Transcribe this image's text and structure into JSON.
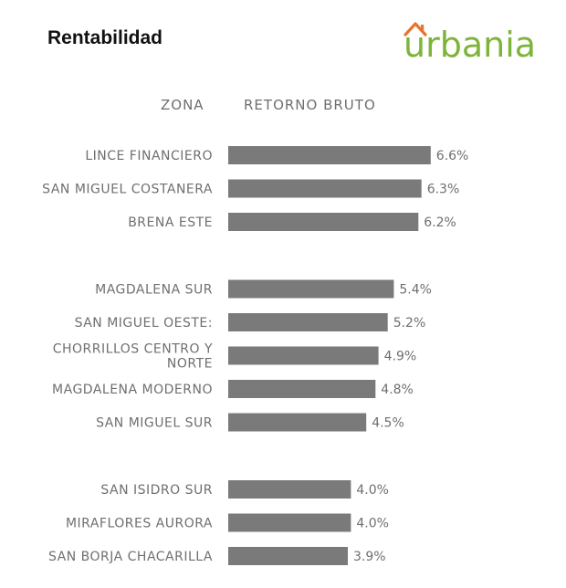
{
  "title": "Rentabilidad",
  "logo": {
    "text": "urbania",
    "color": "#7db43a",
    "roof_color": "#e8732a"
  },
  "headers": {
    "zona": "ZONA",
    "retorno": "RETORNO BRUTO"
  },
  "chart_data": {
    "type": "bar",
    "orientation": "horizontal",
    "bar_color": "#7a7a7a",
    "groups": [
      [
        {
          "label": [
            "LINCE FINANCIERO"
          ],
          "value": 6.6,
          "value_label": "6.6%"
        },
        {
          "label": [
            "SAN MIGUEL COSTANERA"
          ],
          "value": 6.3,
          "value_label": "6.3%"
        },
        {
          "label": [
            "BRENA ESTE"
          ],
          "value": 6.2,
          "value_label": "6.2%"
        }
      ],
      [
        {
          "label": [
            "MAGDALENA SUR"
          ],
          "value": 5.4,
          "value_label": "5.4%"
        },
        {
          "label": [
            "SAN MIGUEL OESTE:"
          ],
          "value": 5.2,
          "value_label": "5.2%"
        },
        {
          "label": [
            "CHORRILLOS CENTRO Y",
            "NORTE"
          ],
          "value": 4.9,
          "value_label": "4.9%"
        },
        {
          "label": [
            "MAGDALENA MODERNO"
          ],
          "value": 4.8,
          "value_label": "4.8%"
        },
        {
          "label": [
            "SAN MIGUEL SUR"
          ],
          "value": 4.5,
          "value_label": "4.5%"
        }
      ],
      [
        {
          "label": [
            "SAN ISIDRO SUR"
          ],
          "value": 4.0,
          "value_label": "4.0%"
        },
        {
          "label": [
            "MIRAFLORES AURORA"
          ],
          "value": 4.0,
          "value_label": "4.0%"
        },
        {
          "label": [
            "SAN BORJA CHACARILLA"
          ],
          "value": 3.9,
          "value_label": "3.9%"
        }
      ]
    ]
  }
}
